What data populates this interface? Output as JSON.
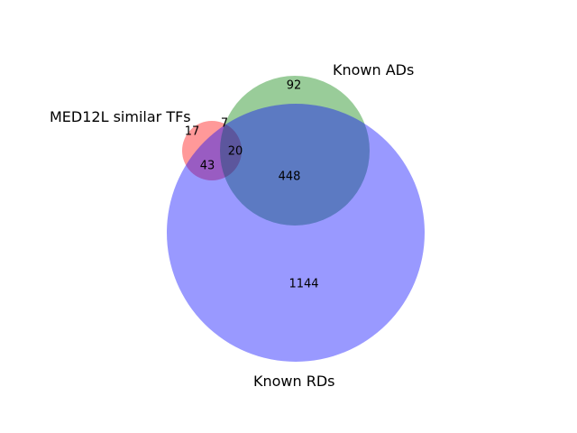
{
  "chart_data": {
    "type": "venn",
    "sets": [
      {
        "name": "MED12L similar TFs",
        "color": "#ff0000"
      },
      {
        "name": "Known ADs",
        "color": "#008000"
      },
      {
        "name": "Known RDs",
        "color": "#0000ff"
      }
    ],
    "regions": [
      {
        "sets": [
          "MED12L similar TFs"
        ],
        "value": 17
      },
      {
        "sets": [
          "Known ADs"
        ],
        "value": 92
      },
      {
        "sets": [
          "Known RDs"
        ],
        "value": 1144
      },
      {
        "sets": [
          "MED12L similar TFs",
          "Known ADs"
        ],
        "value": 7
      },
      {
        "sets": [
          "MED12L similar TFs",
          "Known RDs"
        ],
        "value": 43
      },
      {
        "sets": [
          "Known ADs",
          "Known RDs"
        ],
        "value": 448
      },
      {
        "sets": [
          "MED12L similar TFs",
          "Known ADs",
          "Known RDs"
        ],
        "value": 20
      }
    ],
    "fill_alpha": 0.4
  }
}
